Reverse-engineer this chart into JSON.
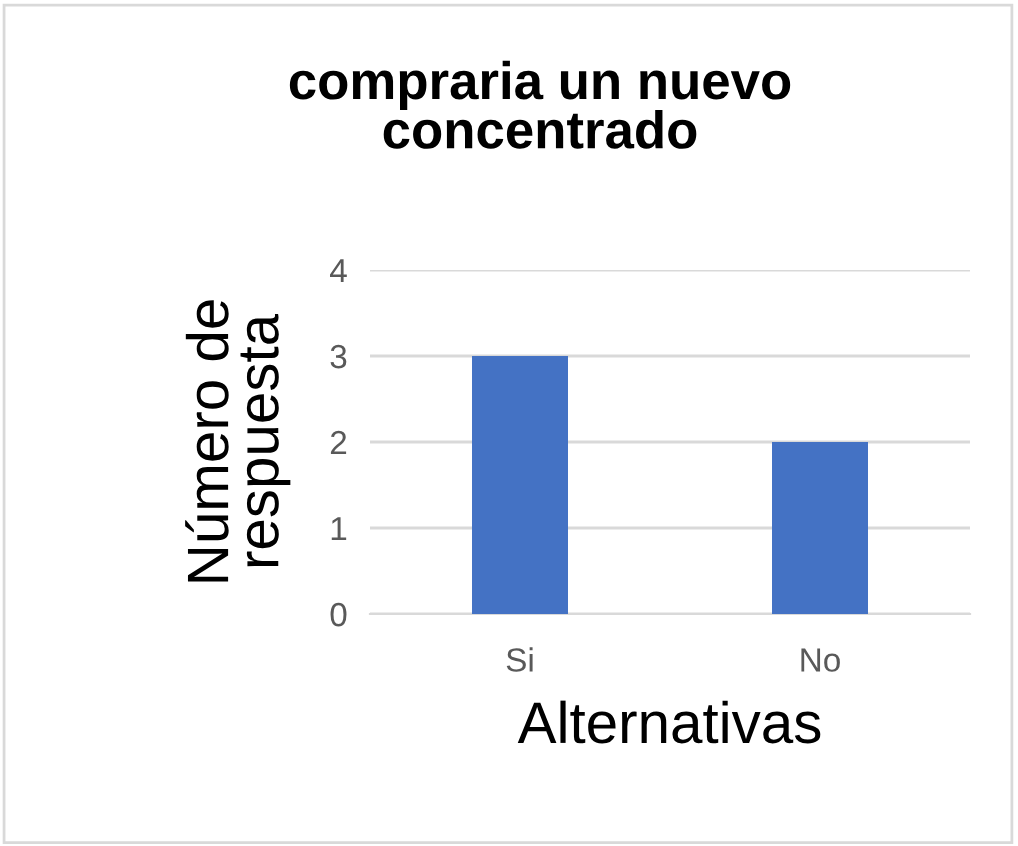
{
  "chart_data": {
    "type": "bar",
    "title": "compraria un nuevo\nconcentrado",
    "xlabel": "Alternativas",
    "ylabel": "Número de\nrespuesta",
    "categories": [
      "Si",
      "No"
    ],
    "values": [
      3,
      2
    ],
    "color": "#4472c4",
    "ylim": [
      0,
      4
    ],
    "yticks": [
      0,
      1,
      2,
      3,
      4
    ],
    "grid": "y"
  }
}
